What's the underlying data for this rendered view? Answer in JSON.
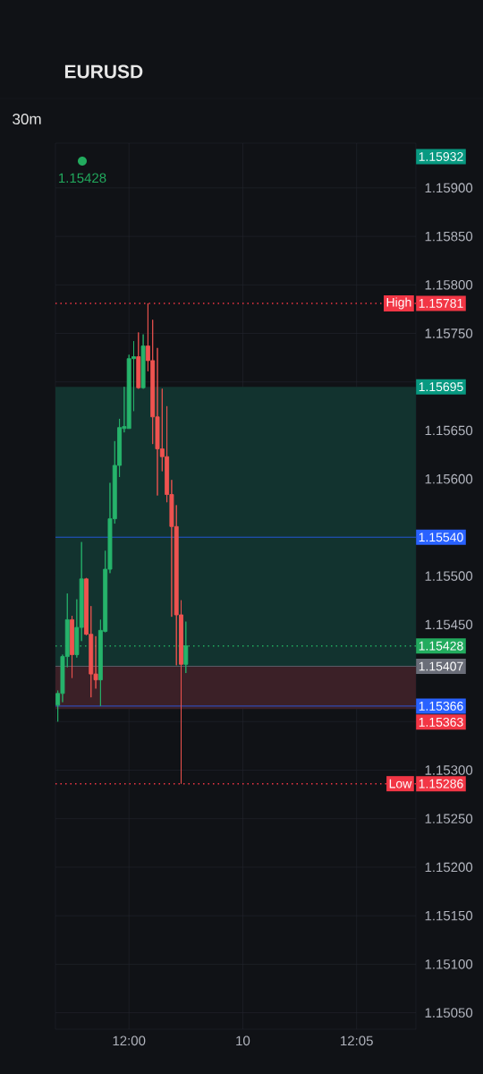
{
  "chart_data": {
    "type": "candlestick",
    "title": "EURUSD",
    "subtitle": "30m",
    "categories": [
      null,
      null,
      null,
      null,
      null,
      null,
      null,
      null,
      null,
      null,
      null,
      null,
      null,
      null,
      null,
      "12:00",
      null,
      null,
      null,
      null,
      null,
      null,
      null,
      null,
      null,
      null,
      null,
      null,
      null,
      null,
      null,
      null,
      null,
      null,
      null,
      null,
      null,
      null,
      null,
      "10",
      null,
      null,
      null,
      null,
      null,
      null,
      null,
      null,
      null,
      null,
      null,
      null,
      null,
      null,
      null,
      null,
      null,
      null,
      null,
      null,
      null,
      null,
      null,
      "12:05",
      null,
      null,
      null,
      null,
      null,
      null,
      null,
      null,
      null,
      null,
      null,
      null
    ],
    "ohlc": [
      [
        1.15367,
        1.15382,
        1.1535,
        1.15379
      ],
      [
        1.15379,
        1.15419,
        1.1537,
        1.15417
      ],
      [
        1.15417,
        1.15482,
        1.15406,
        1.15455
      ],
      [
        1.15455,
        1.15459,
        1.15395,
        1.15419
      ],
      [
        1.15419,
        1.15476,
        1.15416,
        1.15447
      ],
      [
        1.15447,
        1.15535,
        1.15433,
        1.15497
      ],
      [
        1.15497,
        1.15498,
        1.15439,
        1.1544
      ],
      [
        1.1544,
        1.15469,
        1.15375,
        1.15399
      ],
      [
        1.15399,
        1.15438,
        1.15384,
        1.15393
      ],
      [
        1.15393,
        1.15455,
        1.15366,
        1.15444
      ],
      [
        1.15443,
        1.15526,
        1.15442,
        1.15507
      ],
      [
        1.15507,
        1.15596,
        1.15503,
        1.15559
      ],
      [
        1.15559,
        1.15639,
        1.15554,
        1.15614
      ],
      [
        1.15614,
        1.15662,
        1.15602,
        1.15653
      ],
      [
        1.15652,
        1.15695,
        1.15648,
        1.15654
      ],
      [
        1.15652,
        1.15728,
        1.15652,
        1.15724
      ],
      [
        1.15724,
        1.15742,
        1.1567,
        1.15726
      ],
      [
        1.15726,
        1.15751,
        1.15693,
        1.15694
      ],
      [
        1.15694,
        1.15749,
        1.15693,
        1.15737
      ],
      [
        1.15737,
        1.15781,
        1.15711,
        1.15722
      ],
      [
        1.15722,
        1.15764,
        1.15636,
        1.15664
      ],
      [
        1.15664,
        1.15735,
        1.15583,
        1.15631
      ],
      [
        1.15631,
        1.15693,
        1.15608,
        1.15623
      ],
      [
        1.15623,
        1.15675,
        1.15576,
        1.15584
      ],
      [
        1.15584,
        1.15599,
        1.15458,
        1.15551
      ],
      [
        1.15551,
        1.15573,
        1.15408,
        1.1546
      ],
      [
        1.1546,
        1.15475,
        1.15286,
        1.15409
      ],
      [
        1.15409,
        1.15453,
        1.154,
        1.15428
      ],
      null,
      null,
      null,
      null,
      null,
      null,
      null,
      null,
      null,
      null,
      null,
      null,
      null,
      null,
      null,
      null,
      null,
      null,
      null,
      null,
      null,
      null,
      null,
      null,
      null,
      null,
      null,
      null,
      null,
      null,
      null,
      null,
      null,
      null,
      null,
      null,
      null,
      null,
      null,
      null,
      null,
      null,
      null,
      null,
      null,
      null,
      null,
      null
    ],
    "colors": [
      "#26b36b",
      "#26b36b",
      "#26b36b",
      "#ef5350",
      "#26b36b",
      "#26b36b",
      "#ef5350",
      "#ef5350",
      "#ef5350",
      "#26b36b",
      "#26b36b",
      "#26b36b",
      "#26b36b",
      "#26b36b",
      "#26b36b",
      "#26b36b",
      "#26b36b",
      "#ef5350",
      "#26b36b",
      "#ef5350",
      "#ef5350",
      "#ef5350",
      "#ef5350",
      "#ef5350",
      "#ef5350",
      "#ef5350",
      "#ef5350",
      "#26b36b",
      null,
      null,
      null,
      null,
      null,
      null,
      null,
      null,
      null,
      null,
      null,
      null,
      null,
      null,
      null,
      null,
      null,
      null,
      null,
      null,
      null,
      null,
      null,
      null,
      null,
      null,
      null,
      null,
      null,
      null,
      null,
      null,
      null,
      null,
      null,
      null,
      null,
      null,
      null,
      null,
      null,
      null,
      null,
      null,
      null,
      null,
      null,
      null
    ],
    "ylim": [
      1.15033,
      1.15946
    ],
    "yticks": [
      {
        "value": 1.1505,
        "label": "1.15050"
      },
      {
        "value": 1.151,
        "label": "1.15100"
      },
      {
        "value": 1.1515,
        "label": "1.15150"
      },
      {
        "value": 1.152,
        "label": "1.15200"
      },
      {
        "value": 1.1525,
        "label": "1.15250"
      },
      {
        "value": 1.153,
        "label": "1.15300"
      },
      {
        "value": 1.1535,
        "label": null
      },
      {
        "value": 1.154,
        "label": null
      },
      {
        "value": 1.1545,
        "label": "1.15450"
      },
      {
        "value": 1.155,
        "label": "1.15500"
      },
      {
        "value": 1.1555,
        "label": null
      },
      {
        "value": 1.156,
        "label": "1.15600"
      },
      {
        "value": 1.1565,
        "label": "1.15650"
      },
      {
        "value": 1.157,
        "label": null
      },
      {
        "value": 1.1575,
        "label": "1.15750"
      },
      {
        "value": 1.158,
        "label": "1.15800"
      },
      {
        "value": 1.1585,
        "label": "1.15850"
      },
      {
        "value": 1.159,
        "label": "1.15900"
      }
    ],
    "grid": true,
    "bands": [
      {
        "axis": "y",
        "from": 1.15407,
        "to": 1.15695,
        "color": "#12332f",
        "label": "1.15695"
      },
      {
        "axis": "y",
        "from": 1.15407,
        "to": 1.15363,
        "color": "#3b2027",
        "label": "1.15363"
      }
    ],
    "ref_lines": [
      {
        "axis": "y",
        "value": 1.15781,
        "label": "1.15781",
        "color": "#f23645",
        "line_style": "dotted"
      },
      {
        "axis": "y",
        "value": 1.15286,
        "label": "1.15286",
        "color": "#f23645",
        "line_style": "dotted"
      },
      {
        "axis": "y",
        "value": 1.1554,
        "label": "1.15540",
        "color": "#2962ff",
        "line_style": "solid"
      },
      {
        "axis": "y",
        "value": 1.15428,
        "label": "1.15428",
        "color": "#22ab5e",
        "line_style": "dotted"
      },
      {
        "axis": "y",
        "value": 1.15407,
        "label": "1.15407",
        "color": "#6a6d78",
        "line_style": "solid"
      },
      {
        "axis": "y",
        "value": 1.15366,
        "label": "1.15366",
        "color": "#2962ff",
        "line_style": "solid"
      }
    ],
    "annotations": [
      "1.15428",
      "1.15932",
      {
        "text": "High",
        "y": 1.15781
      },
      {
        "text": "Low",
        "y": 1.15286
      }
    ]
  }
}
